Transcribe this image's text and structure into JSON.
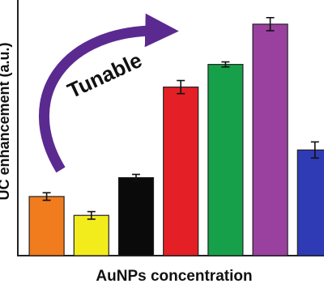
{
  "chart_data": {
    "type": "bar",
    "x_label": "AuNPs concentration",
    "y_label": "UC enhancement (a.u.)",
    "annotation": "Tunable",
    "categories": [
      null,
      null,
      null,
      null,
      null,
      null,
      null
    ],
    "values": [
      23.5,
      16,
      31,
      67,
      76,
      92,
      42
    ],
    "errors": [
      1.5,
      1.5,
      1.3,
      2.6,
      1,
      2.6,
      3.2
    ],
    "colors": [
      "#f07c1e",
      "#f3ec1c",
      "#0a0a0a",
      "#e41f26",
      "#17a04a",
      "#9a41a0",
      "#2e3bb5"
    ],
    "ylim": [
      0,
      100
    ]
  }
}
